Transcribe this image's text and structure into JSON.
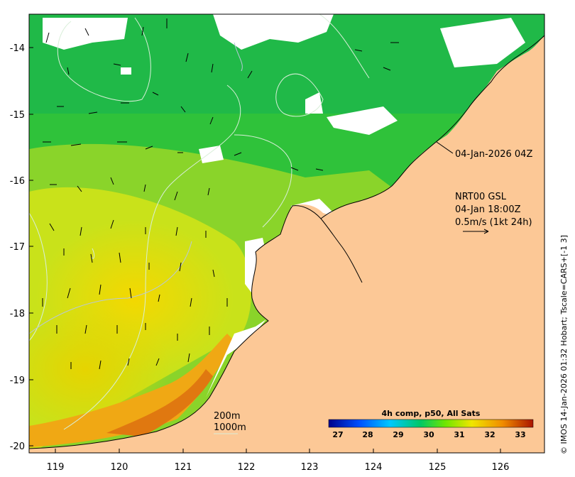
{
  "y_ticks": [
    "-14",
    "-15",
    "-16",
    "-17",
    "-18",
    "-19",
    "-20"
  ],
  "x_ticks": [
    "119",
    "120",
    "121",
    "122",
    "123",
    "124",
    "125",
    "126"
  ],
  "timestamp_label": "04-Jan-2026 04Z",
  "current_legend": {
    "line1": "NRT00 GSL",
    "line2": "04-Jan 18:00Z",
    "line3": "0.5m/s (1kt 24h)"
  },
  "isobath_labels": [
    "200m",
    "1000m"
  ],
  "colorbar": {
    "title": "4h comp, p50, All Sats",
    "ticks": [
      "27",
      "28",
      "29",
      "30",
      "31",
      "32",
      "33"
    ],
    "colors": [
      "#00008b",
      "#0050ff",
      "#00c8ff",
      "#00c864",
      "#6ee600",
      "#f0e600",
      "#f08c00",
      "#aa1400"
    ]
  },
  "credit": "© IMOS 14-Jan-2026 01:32 Hobart; Tscale=CARS+[-1 3]",
  "colors": {
    "land": "#fcc896",
    "cloud": "#ffffff"
  }
}
